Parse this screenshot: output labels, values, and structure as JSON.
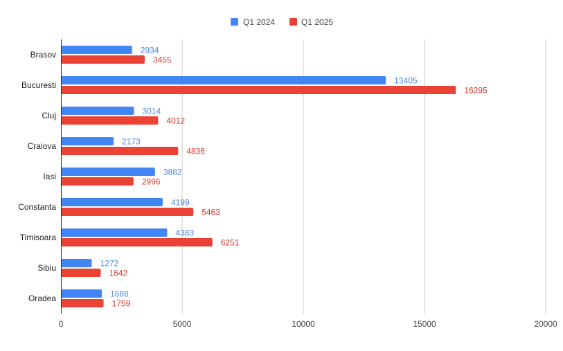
{
  "chart_data": {
    "type": "bar",
    "orientation": "horizontal",
    "categories": [
      "Brasov",
      "Bucuresti",
      "Cluj",
      "Craiova",
      "Iasi",
      "Constanta",
      "Timisoara",
      "Sibiu",
      "Oradea"
    ],
    "series": [
      {
        "name": "Q1 2024",
        "color": "#4285f4",
        "values": [
          2934,
          13405,
          3014,
          2173,
          3882,
          4199,
          4383,
          1272,
          1688
        ]
      },
      {
        "name": "Q1 2025",
        "color": "#ea4335",
        "values": [
          3455,
          16295,
          4012,
          4836,
          2996,
          5463,
          6251,
          1642,
          1759
        ]
      }
    ],
    "xlim": [
      0,
      20000
    ],
    "xticks": [
      0,
      5000,
      10000,
      15000,
      20000
    ],
    "grid": true,
    "legend_position": "top",
    "data_labels": true
  }
}
